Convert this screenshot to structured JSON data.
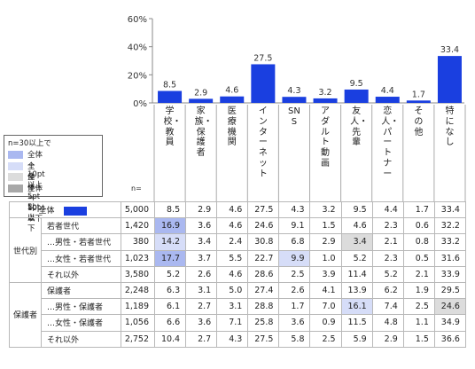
{
  "chart_data": {
    "type": "bar",
    "categories": [
      "学校・教員",
      "家族・保護者",
      "医療機関",
      "インターネット",
      "SNS",
      "アダルト動画",
      "友人・先輩",
      "恋人・パートナー",
      "その他",
      "特になし"
    ],
    "values": [
      8.5,
      2.9,
      4.6,
      27.5,
      4.3,
      3.2,
      9.5,
      4.4,
      1.7,
      33.4
    ],
    "value_labels": [
      "8.5",
      "2.9",
      "4.6",
      "27.5",
      "4.3",
      "3.2",
      "9.5",
      "4.4",
      "1.7",
      "33.4"
    ],
    "ylim": [
      0,
      60
    ],
    "yticks": [
      "0%",
      "20%",
      "40%",
      "60%"
    ],
    "ytick_values": [
      0,
      20,
      40,
      60
    ],
    "bar_color": "#1a3fe0"
  },
  "legend": {
    "title": "n=30以上で",
    "items": [
      {
        "label": "全体＋10pt以上",
        "color": "#aab8f0"
      },
      {
        "label": "全体＋5pt以上",
        "color": "#d6ddf8"
      },
      {
        "label": "全体－5pt以下",
        "color": "#dcdcdc"
      },
      {
        "label": "全体－10pt以下",
        "color": "#a8a8a8"
      }
    ]
  },
  "n_label": "n=",
  "table": {
    "total_row": {
      "label": "全体",
      "n": "5,000",
      "values": [
        "8.5",
        "2.9",
        "4.6",
        "27.5",
        "4.3",
        "3.2",
        "9.5",
        "4.4",
        "1.7",
        "33.4"
      ],
      "hl": [
        "",
        "",
        "",
        "",
        "",
        "",
        "",
        "",
        "",
        ""
      ]
    },
    "groups": [
      {
        "label": "世代別",
        "rows": [
          {
            "label": "若者世代",
            "n": "1,420",
            "values": [
              "16.9",
              "3.6",
              "4.6",
              "24.6",
              "9.1",
              "1.5",
              "4.6",
              "2.3",
              "0.6",
              "32.2"
            ],
            "hl": [
              "dark-blue",
              "",
              "",
              "",
              "",
              "",
              "",
              "",
              "",
              ""
            ]
          },
          {
            "label": "…男性・若者世代",
            "n": "380",
            "values": [
              "14.2",
              "3.4",
              "2.4",
              "30.8",
              "6.8",
              "2.9",
              "3.4",
              "2.1",
              "0.8",
              "33.2"
            ],
            "hl": [
              "light-blue",
              "",
              "",
              "",
              "",
              "",
              "light-gray",
              "",
              "",
              ""
            ]
          },
          {
            "label": "…女性・若者世代",
            "n": "1,023",
            "values": [
              "17.7",
              "3.7",
              "5.5",
              "22.7",
              "9.9",
              "1.0",
              "5.2",
              "2.3",
              "0.5",
              "31.6"
            ],
            "hl": [
              "dark-blue",
              "",
              "",
              "",
              "light-blue",
              "",
              "",
              "",
              "",
              ""
            ]
          },
          {
            "label": "それ以外",
            "n": "3,580",
            "values": [
              "5.2",
              "2.6",
              "4.6",
              "28.6",
              "2.5",
              "3.9",
              "11.4",
              "5.2",
              "2.1",
              "33.9"
            ],
            "hl": [
              "",
              "",
              "",
              "",
              "",
              "",
              "",
              "",
              "",
              ""
            ]
          }
        ]
      },
      {
        "label": "保護者",
        "rows": [
          {
            "label": "保護者",
            "n": "2,248",
            "values": [
              "6.3",
              "3.1",
              "5.0",
              "27.4",
              "2.6",
              "4.1",
              "13.9",
              "6.2",
              "1.9",
              "29.5"
            ],
            "hl": [
              "",
              "",
              "",
              "",
              "",
              "",
              "",
              "",
              "",
              ""
            ]
          },
          {
            "label": "…男性・保護者",
            "n": "1,189",
            "values": [
              "6.1",
              "2.7",
              "3.1",
              "28.8",
              "1.7",
              "7.0",
              "16.1",
              "7.4",
              "2.5",
              "24.6"
            ],
            "hl": [
              "",
              "",
              "",
              "",
              "",
              "",
              "light-blue",
              "",
              "",
              "light-gray"
            ]
          },
          {
            "label": "…女性・保護者",
            "n": "1,056",
            "values": [
              "6.6",
              "3.6",
              "7.1",
              "25.8",
              "3.6",
              "0.9",
              "11.5",
              "4.8",
              "1.1",
              "34.9"
            ],
            "hl": [
              "",
              "",
              "",
              "",
              "",
              "",
              "",
              "",
              "",
              ""
            ]
          },
          {
            "label": "それ以外",
            "n": "2,752",
            "values": [
              "10.4",
              "2.7",
              "4.3",
              "27.5",
              "5.8",
              "2.5",
              "5.9",
              "2.9",
              "1.5",
              "36.6"
            ],
            "hl": [
              "",
              "",
              "",
              "",
              "",
              "",
              "",
              "",
              "",
              ""
            ]
          }
        ]
      }
    ]
  }
}
